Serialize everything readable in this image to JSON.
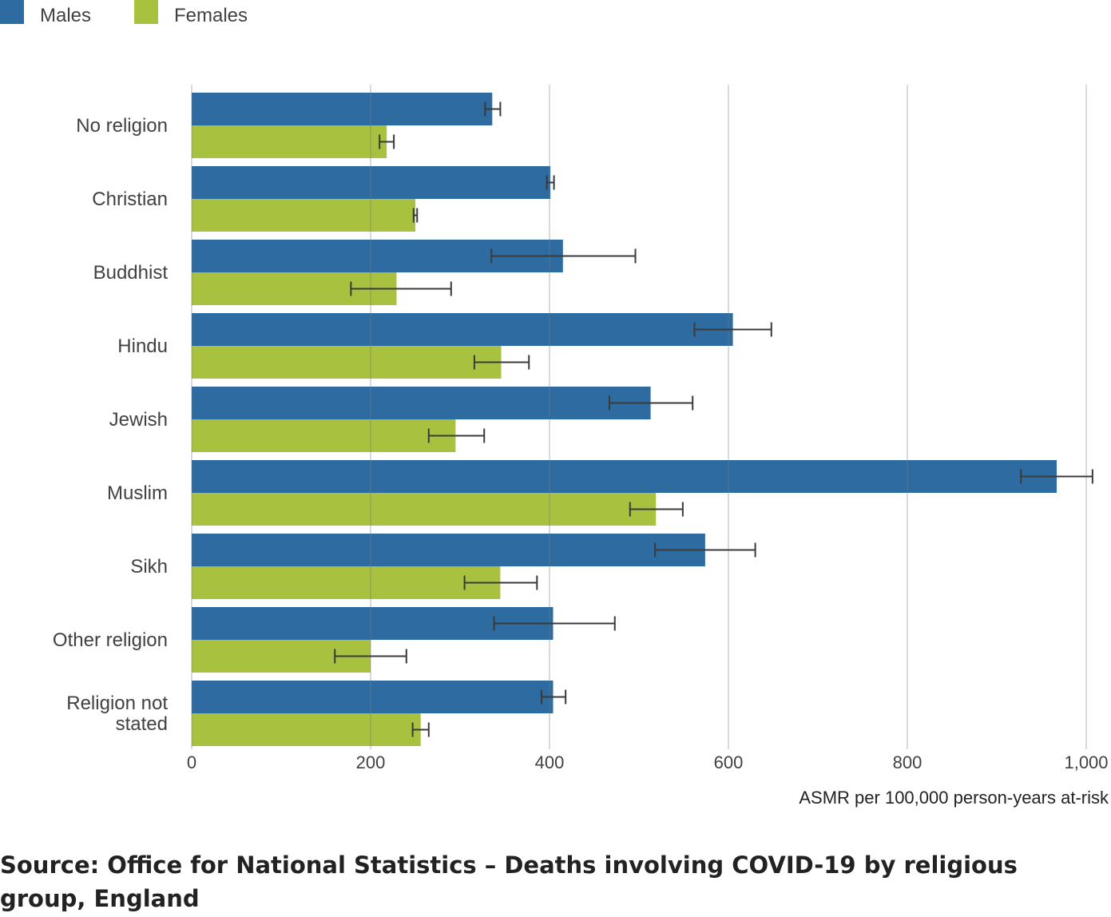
{
  "chart_data": {
    "type": "bar",
    "orientation": "horizontal",
    "categories": [
      "No religion",
      "Christian",
      "Buddhist",
      "Hindu",
      "Jewish",
      "Muslim",
      "Sikh",
      "Other religion",
      "Religion not stated"
    ],
    "series": [
      {
        "name": "Males",
        "color": "#2e6ba0",
        "values": [
          336,
          401,
          415,
          605,
          513,
          967,
          574,
          404,
          404
        ],
        "ci_lower": [
          328,
          397,
          335,
          562,
          467,
          927,
          518,
          338,
          391
        ],
        "ci_upper": [
          345,
          405,
          496,
          648,
          560,
          1007,
          630,
          473,
          418
        ]
      },
      {
        "name": "Females",
        "color": "#a8c240",
        "values": [
          218,
          250,
          229,
          346,
          295,
          519,
          345,
          200,
          256
        ],
        "ci_lower": [
          210,
          248,
          178,
          316,
          265,
          490,
          305,
          160,
          247
        ],
        "ci_upper": [
          226,
          252,
          290,
          377,
          327,
          549,
          386,
          240,
          265
        ]
      }
    ],
    "x_ticks": [
      "0",
      "200",
      "400",
      "600",
      "800",
      "1,000"
    ],
    "xlim": [
      0,
      1000
    ],
    "xlabel": "ASMR per 100,000 person-years at-risk",
    "grid": "vertical",
    "legend_position": "top-left"
  },
  "source": "Source: Office for National Statistics – Deaths involving COVID-19 by religious group, England"
}
